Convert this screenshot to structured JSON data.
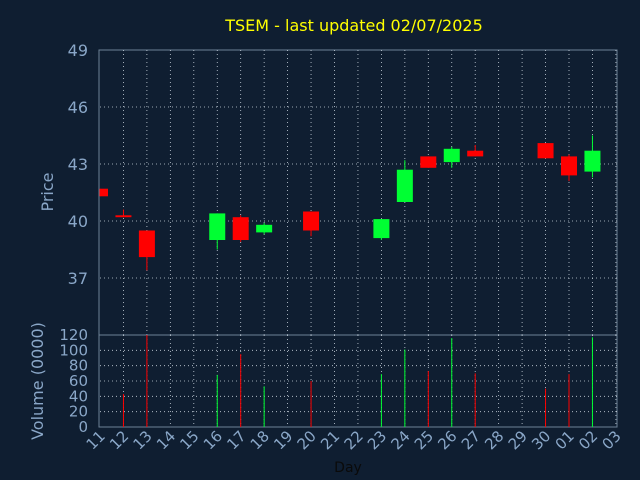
{
  "chart_data": [
    {
      "type": "candlestick",
      "title": "TSEM - last updated 02/07/2025",
      "ylabel": "Price",
      "ylim": [
        34,
        49
      ],
      "yticks": [
        "37",
        "40",
        "43",
        "46",
        "49"
      ],
      "grid": true,
      "x_ticks": [
        "11",
        "12",
        "13",
        "14",
        "15",
        "16",
        "17",
        "18",
        "19",
        "20",
        "21",
        "22",
        "23",
        "24",
        "25",
        "26",
        "27",
        "28",
        "29",
        "30",
        "01",
        "02",
        "03"
      ],
      "colors": {
        "up": "#00ff33",
        "down": "#ff0000"
      },
      "candles": [
        {
          "day": "11",
          "open": 41.7,
          "high": 41.7,
          "low": 41.3,
          "close": 41.3
        },
        {
          "day": "12",
          "open": 40.3,
          "high": 40.6,
          "low": 40.2,
          "close": 40.2
        },
        {
          "day": "13",
          "open": 39.5,
          "high": 39.5,
          "low": 37.4,
          "close": 38.1
        },
        {
          "day": "16",
          "open": 39.0,
          "high": 40.4,
          "low": 38.5,
          "close": 40.4
        },
        {
          "day": "17",
          "open": 40.2,
          "high": 40.3,
          "low": 38.9,
          "close": 39.0
        },
        {
          "day": "18",
          "open": 39.4,
          "high": 39.9,
          "low": 39.3,
          "close": 39.8
        },
        {
          "day": "20",
          "open": 40.5,
          "high": 40.5,
          "low": 39.2,
          "close": 39.5
        },
        {
          "day": "23",
          "open": 39.1,
          "high": 40.1,
          "low": 39.0,
          "close": 40.1
        },
        {
          "day": "24",
          "open": 41.0,
          "high": 43.2,
          "low": 41.0,
          "close": 42.7
        },
        {
          "day": "25",
          "open": 43.4,
          "high": 43.4,
          "low": 42.8,
          "close": 42.8
        },
        {
          "day": "26",
          "open": 43.1,
          "high": 43.9,
          "low": 42.8,
          "close": 43.8
        },
        {
          "day": "27",
          "open": 43.7,
          "high": 44.0,
          "low": 43.4,
          "close": 43.4
        },
        {
          "day": "30",
          "open": 44.1,
          "high": 44.1,
          "low": 43.3,
          "close": 43.3
        },
        {
          "day": "01",
          "open": 43.4,
          "high": 43.5,
          "low": 42.1,
          "close": 42.4
        },
        {
          "day": "02",
          "open": 42.6,
          "high": 44.5,
          "low": 42.3,
          "close": 43.7
        }
      ]
    },
    {
      "type": "bar",
      "ylabel": "Volume (0000)",
      "xlabel": "Day",
      "ylim": [
        0,
        120
      ],
      "yticks": [
        "0",
        "20",
        "40",
        "60",
        "80",
        "100",
        "120"
      ],
      "x_ticks": [
        "11",
        "12",
        "13",
        "14",
        "15",
        "16",
        "17",
        "18",
        "19",
        "20",
        "21",
        "22",
        "23",
        "24",
        "25",
        "26",
        "27",
        "28",
        "29",
        "30",
        "01",
        "02",
        "03"
      ],
      "bars": [
        {
          "day": "11",
          "value": 0,
          "dir": "down"
        },
        {
          "day": "12",
          "value": 43,
          "dir": "down"
        },
        {
          "day": "13",
          "value": 120,
          "dir": "down"
        },
        {
          "day": "16",
          "value": 68,
          "dir": "up"
        },
        {
          "day": "17",
          "value": 95,
          "dir": "down"
        },
        {
          "day": "18",
          "value": 53,
          "dir": "up"
        },
        {
          "day": "20",
          "value": 60,
          "dir": "down"
        },
        {
          "day": "23",
          "value": 69,
          "dir": "up"
        },
        {
          "day": "24",
          "value": 101,
          "dir": "up"
        },
        {
          "day": "25",
          "value": 73,
          "dir": "down"
        },
        {
          "day": "26",
          "value": 116,
          "dir": "up"
        },
        {
          "day": "27",
          "value": 70,
          "dir": "down"
        },
        {
          "day": "30",
          "value": 50,
          "dir": "down"
        },
        {
          "day": "01",
          "value": 69,
          "dir": "down"
        },
        {
          "day": "02",
          "value": 117,
          "dir": "up"
        }
      ]
    }
  ]
}
